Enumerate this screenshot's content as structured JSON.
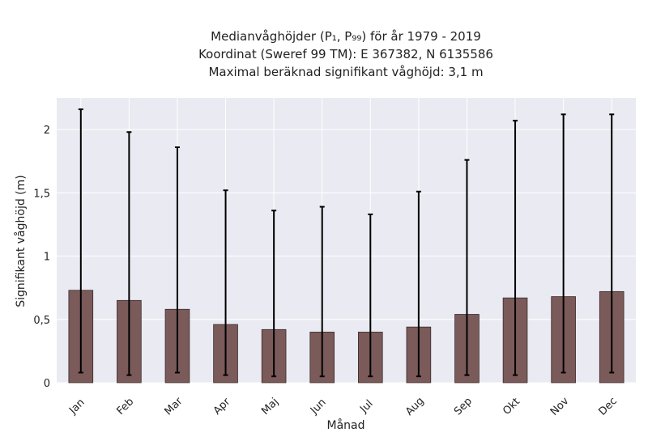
{
  "chart_data": {
    "type": "bar",
    "title_lines": [
      "Medianvåghöjder (P₁, P₉₉) för år 1979 - 2019",
      "Koordinat (Sweref 99 TM): E 367382, N 6135586",
      "Maximal beräknad signifikant våghöjd: 3,1 m"
    ],
    "xlabel": "Månad",
    "ylabel": "Signifikant våghöjd (m)",
    "categories": [
      "Jan",
      "Feb",
      "Mar",
      "Apr",
      "Maj",
      "Jun",
      "Jul",
      "Aug",
      "Sep",
      "Okt",
      "Nov",
      "Dec"
    ],
    "values": [
      0.73,
      0.65,
      0.58,
      0.46,
      0.42,
      0.4,
      0.4,
      0.44,
      0.54,
      0.67,
      0.68,
      0.72
    ],
    "p1": [
      0.08,
      0.06,
      0.08,
      0.06,
      0.05,
      0.05,
      0.05,
      0.05,
      0.06,
      0.06,
      0.08,
      0.08
    ],
    "p99": [
      2.16,
      1.98,
      1.86,
      1.52,
      1.36,
      1.39,
      1.33,
      1.51,
      1.76,
      2.07,
      2.12,
      2.12
    ],
    "ylim": [
      0,
      2.25
    ],
    "yticks": [
      0,
      0.5,
      1,
      1.5,
      2
    ],
    "ytick_labels": [
      "0",
      "0,5",
      "1",
      "1,5",
      "2"
    ],
    "grid": true,
    "colors": {
      "bar": "#7b5a5a",
      "bar_edge": "#3a2a2a",
      "plot_bg": "#eaeaf2",
      "grid": "#ffffff",
      "error": "#000000"
    }
  }
}
